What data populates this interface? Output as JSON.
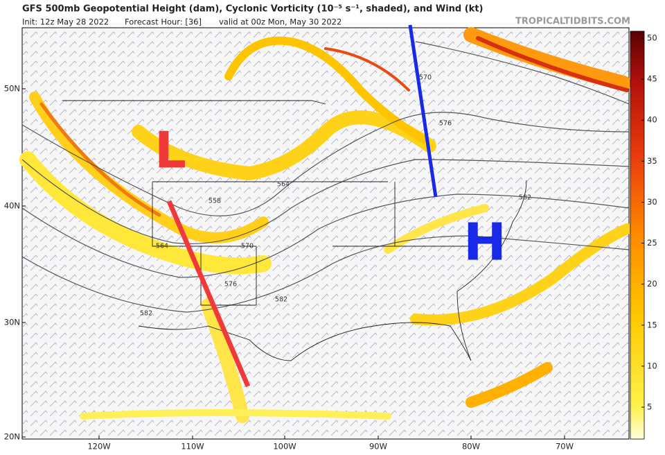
{
  "header": {
    "title": "GFS 500mb Geopotential Height (dam), Cyclonic Vorticity (10⁻⁵ s⁻¹, shaded), and Wind (kt)",
    "init": "Init: 12z May 28 2022",
    "forecast_hour": "Forecast Hour: [36]",
    "valid": "valid at 00z Mon, May 30 2022",
    "credit": "TROPICALTIDBITS.COM"
  },
  "colorbar": {
    "ticks": [
      5,
      10,
      15,
      20,
      25,
      30,
      35,
      40,
      45,
      50
    ]
  },
  "map": {
    "lat_labels": [
      "50N",
      "40N",
      "30N",
      "20N"
    ],
    "lon_labels": [
      "120W",
      "110W",
      "100W",
      "90W",
      "80W",
      "70W"
    ],
    "contour_labels": [
      "570",
      "576",
      "564",
      "558",
      "570",
      "576",
      "582",
      "582",
      "564",
      "582"
    ],
    "annotations": {
      "low": "L",
      "high": "H"
    }
  }
}
